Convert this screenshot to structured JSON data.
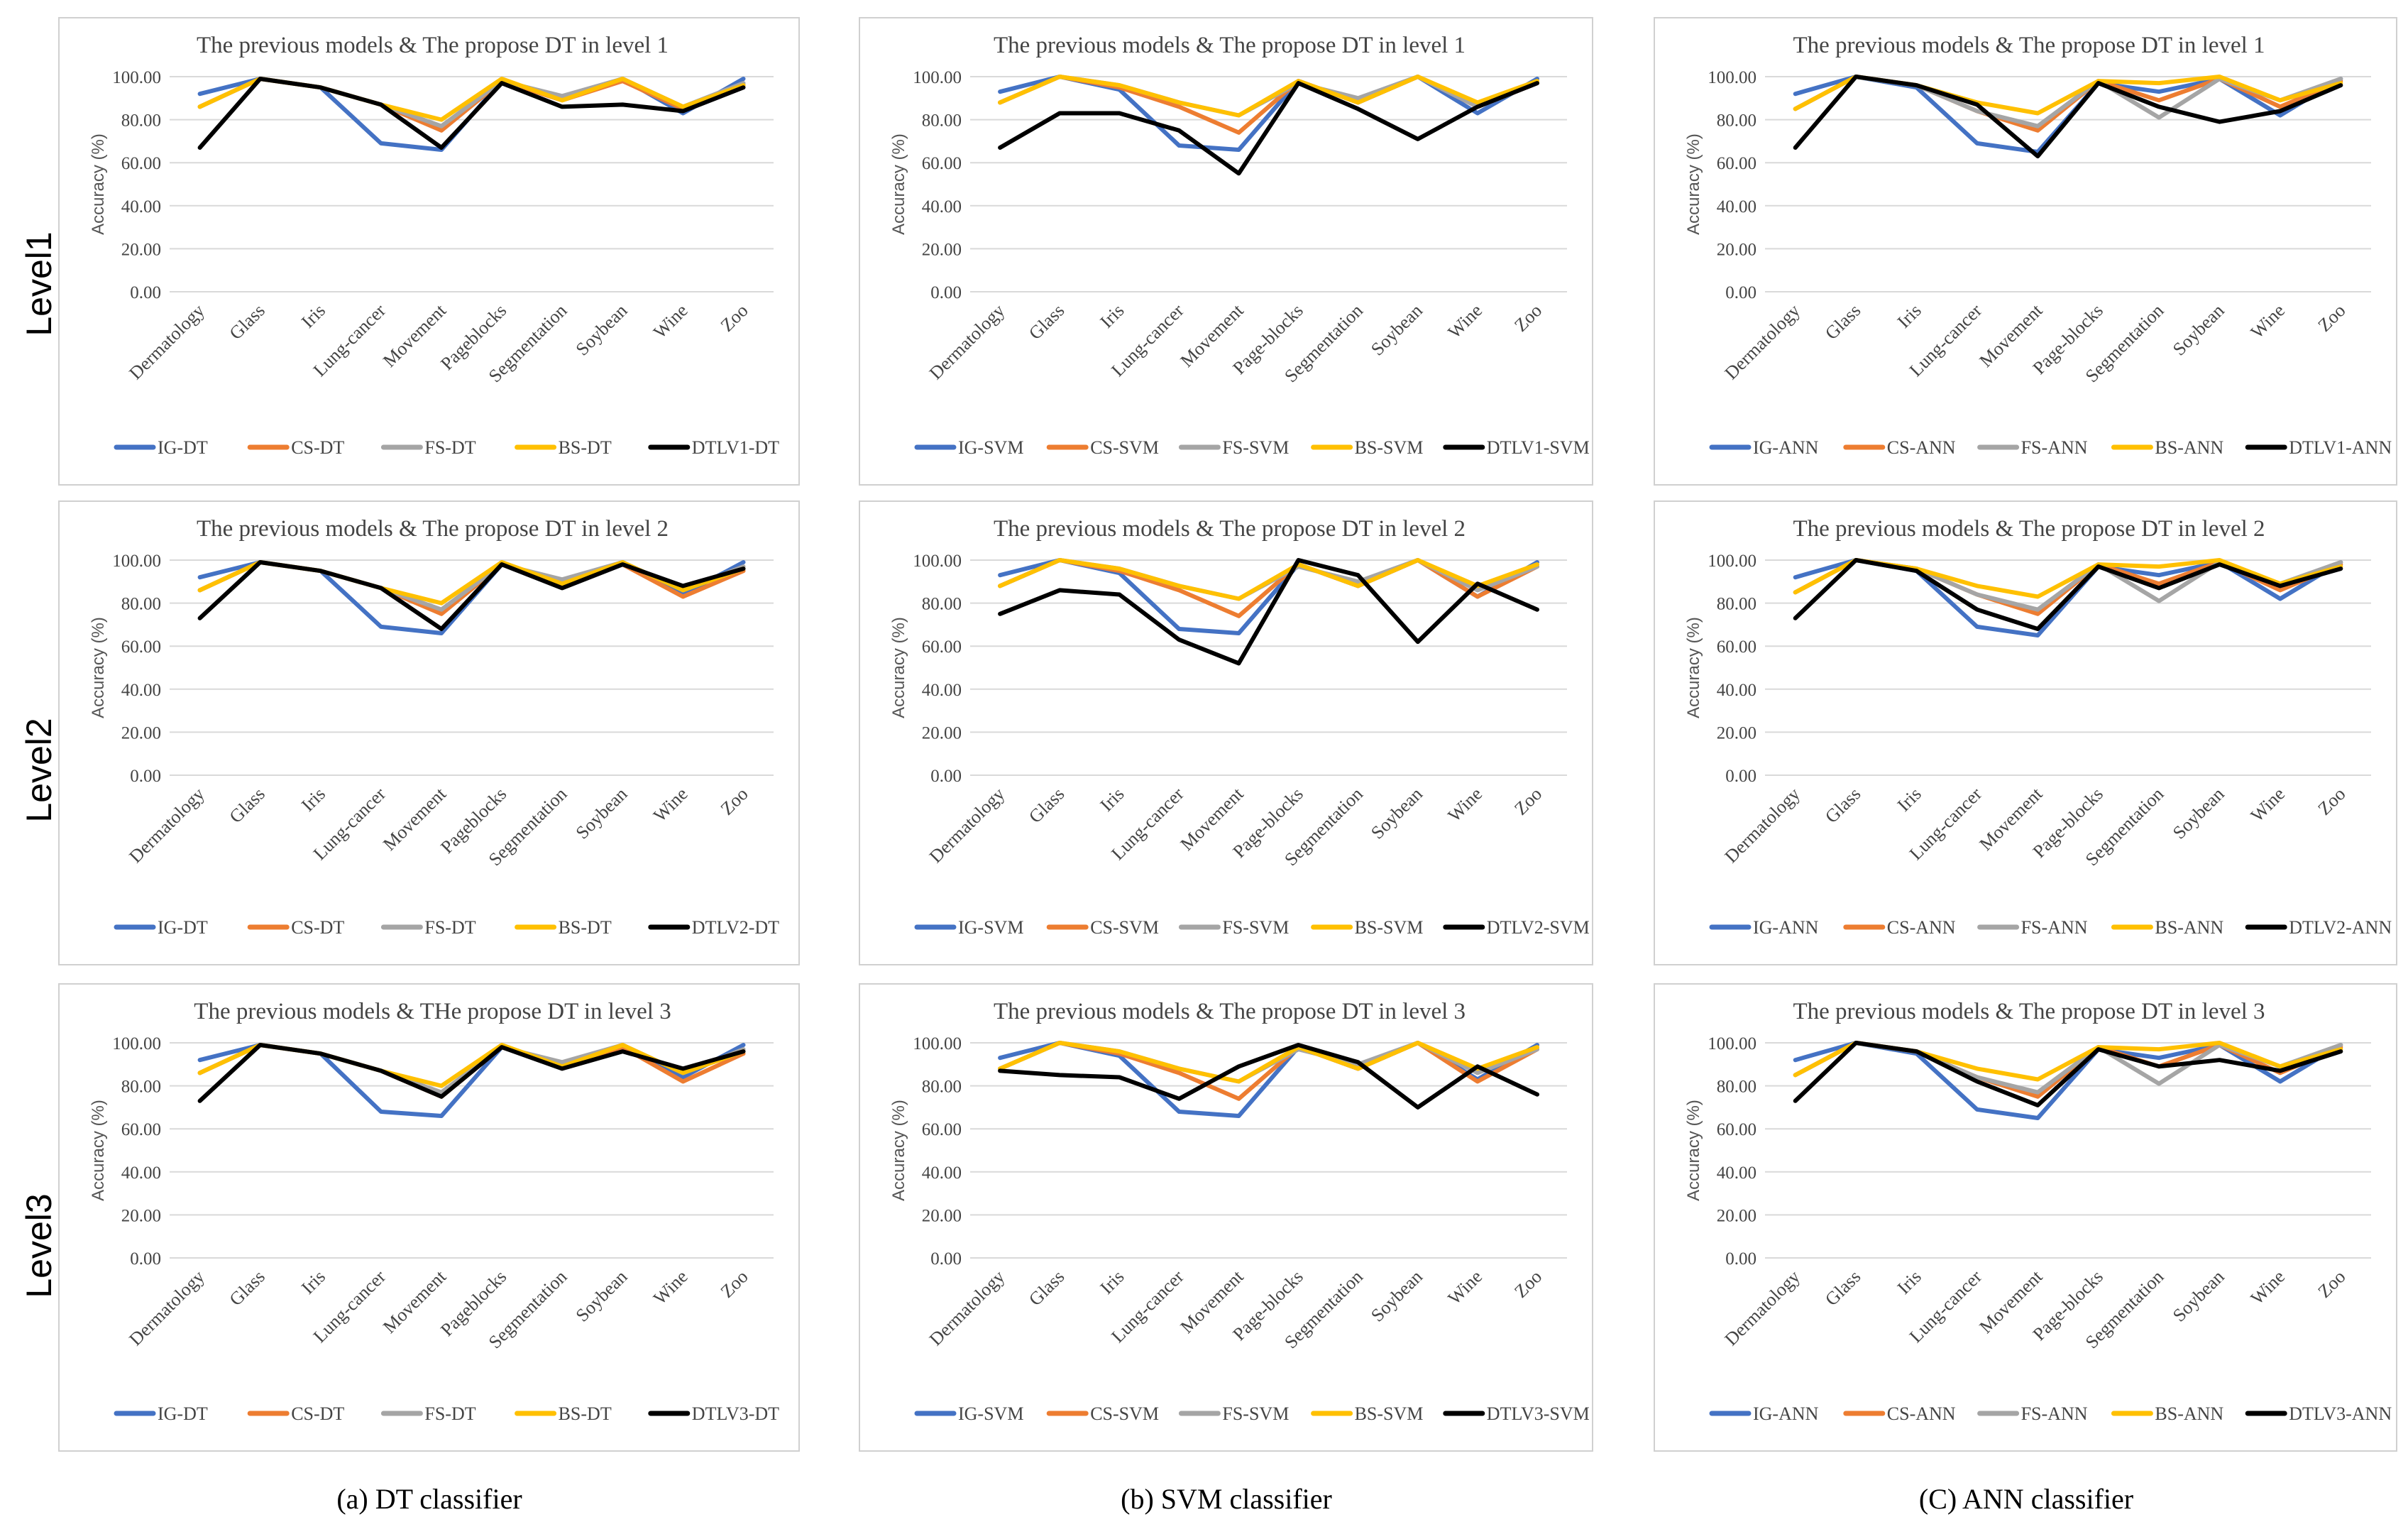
{
  "row_labels": [
    "Level1",
    "Level2",
    "Level3"
  ],
  "captions": [
    "(a) DT classifier",
    "(b) SVM classifier",
    "(C) ANN classifier"
  ],
  "colors": {
    "IG": "#4472C4",
    "CS": "#ED7D31",
    "FS": "#A5A5A5",
    "BS": "#FFC000",
    "DTLV": "#000000",
    "grid": "#d9d9d9"
  },
  "chart_data": [
    {
      "type": "line",
      "title": "The previous models & The propose DT in level 1",
      "ylabel": "Accuracy (%)",
      "ylim": [
        0,
        100
      ],
      "yticks": [
        "0.00",
        "20.00",
        "40.00",
        "60.00",
        "80.00",
        "100.00"
      ],
      "categories": [
        "Dermatology",
        "Glass",
        "Iris",
        "Lung-cancer",
        "Movement",
        "Pageblocks",
        "Segmentation",
        "Soybean",
        "Wine",
        "Zoo"
      ],
      "series": [
        {
          "name": "IG-DT",
          "values": [
            92,
            99,
            95,
            69,
            66,
            98,
            90,
            99,
            83,
            99
          ]
        },
        {
          "name": "CS-DT",
          "values": [
            86,
            99,
            95,
            87,
            75,
            98,
            89,
            98,
            85,
            96
          ]
        },
        {
          "name": "FS-DT",
          "values": [
            86,
            99,
            95,
            87,
            77,
            98,
            91,
            99,
            86,
            97
          ]
        },
        {
          "name": "BS-DT",
          "values": [
            86,
            99,
            95,
            87,
            80,
            99,
            89,
            99,
            86,
            96
          ]
        },
        {
          "name": "DTLV1-DT",
          "values": [
            67,
            99,
            95,
            87,
            67,
            97,
            86,
            87,
            84,
            95
          ]
        }
      ]
    },
    {
      "type": "line",
      "title": "The previous models & The propose DT in level 1",
      "ylabel": "Accuracy (%)",
      "ylim": [
        0,
        100
      ],
      "yticks": [
        "0.00",
        "20.00",
        "40.00",
        "60.00",
        "80.00",
        "100.00"
      ],
      "categories": [
        "Dermatology",
        "Glass",
        "Iris",
        "Lung-cancer",
        "Movement",
        "Page-blocks",
        "Segmentation",
        "Soybean",
        "Wine",
        "Zoo"
      ],
      "series": [
        {
          "name": "IG-SVM",
          "values": [
            93,
            100,
            94,
            68,
            66,
            98,
            88,
            100,
            83,
            99
          ]
        },
        {
          "name": "CS-SVM",
          "values": [
            88,
            100,
            95,
            86,
            74,
            98,
            88,
            100,
            86,
            97
          ]
        },
        {
          "name": "FS-SVM",
          "values": [
            88,
            100,
            96,
            88,
            82,
            97,
            90,
            100,
            86,
            97
          ]
        },
        {
          "name": "BS-SVM",
          "values": [
            88,
            100,
            96,
            88,
            82,
            98,
            88,
            100,
            88,
            98
          ]
        },
        {
          "name": "DTLV1-SVM",
          "values": [
            67,
            83,
            83,
            75,
            55,
            97,
            85,
            71,
            86,
            97
          ]
        }
      ]
    },
    {
      "type": "line",
      "title": "The previous models & The propose DT in level 1",
      "ylabel": "Accuracy (%)",
      "ylim": [
        0,
        100
      ],
      "yticks": [
        "0.00",
        "20.00",
        "40.00",
        "60.00",
        "80.00",
        "100.00"
      ],
      "categories": [
        "Dermatology",
        "Glass",
        "Iris",
        "Lung-cancer",
        "Movement",
        "Page-blocks",
        "Segmentation",
        "Soybean",
        "Wine",
        "Zoo"
      ],
      "series": [
        {
          "name": "IG-ANN",
          "values": [
            92,
            100,
            95,
            69,
            65,
            97,
            93,
            99,
            82,
            99
          ]
        },
        {
          "name": "CS-ANN",
          "values": [
            85,
            100,
            96,
            84,
            75,
            98,
            89,
            99,
            86,
            98
          ]
        },
        {
          "name": "FS-ANN",
          "values": [
            85,
            100,
            96,
            84,
            77,
            98,
            81,
            99,
            89,
            99
          ]
        },
        {
          "name": "BS-ANN",
          "values": [
            85,
            100,
            96,
            88,
            83,
            98,
            97,
            100,
            89,
            97
          ]
        },
        {
          "name": "DTLV1-ANN",
          "values": [
            67,
            100,
            96,
            87,
            63,
            97,
            86,
            79,
            84,
            96
          ]
        }
      ]
    },
    {
      "type": "line",
      "title": "The previous models & The propose DT in level 2",
      "ylabel": "Accuracy (%)",
      "ylim": [
        0,
        100
      ],
      "yticks": [
        "0.00",
        "20.00",
        "40.00",
        "60.00",
        "80.00",
        "100.00"
      ],
      "categories": [
        "Dermatology",
        "Glass",
        "Iris",
        "Lung-cancer",
        "Movement",
        "Pageblocks",
        "Segmentation",
        "Soybean",
        "Wine",
        "Zoo"
      ],
      "series": [
        {
          "name": "IG-DT",
          "values": [
            92,
            99,
            95,
            69,
            66,
            98,
            90,
            99,
            84,
            99
          ]
        },
        {
          "name": "CS-DT",
          "values": [
            86,
            99,
            95,
            87,
            75,
            98,
            89,
            98,
            83,
            95
          ]
        },
        {
          "name": "FS-DT",
          "values": [
            86,
            99,
            95,
            87,
            77,
            98,
            91,
            99,
            86,
            97
          ]
        },
        {
          "name": "BS-DT",
          "values": [
            86,
            99,
            95,
            87,
            80,
            99,
            89,
            99,
            86,
            96
          ]
        },
        {
          "name": "DTLV2-DT",
          "values": [
            73,
            99,
            95,
            87,
            68,
            98,
            87,
            98,
            88,
            96
          ]
        }
      ]
    },
    {
      "type": "line",
      "title": "The previous models & The propose DT in level 2",
      "ylabel": "Accuracy (%)",
      "ylim": [
        0,
        100
      ],
      "yticks": [
        "0.00",
        "20.00",
        "40.00",
        "60.00",
        "80.00",
        "100.00"
      ],
      "categories": [
        "Dermatology",
        "Glass",
        "Iris",
        "Lung-cancer",
        "Movement",
        "Page-blocks",
        "Segmentation",
        "Soybean",
        "Wine",
        "Zoo"
      ],
      "series": [
        {
          "name": "IG-SVM",
          "values": [
            93,
            100,
            94,
            68,
            66,
            98,
            88,
            100,
            83,
            99
          ]
        },
        {
          "name": "CS-SVM",
          "values": [
            88,
            100,
            95,
            86,
            74,
            98,
            88,
            100,
            83,
            97
          ]
        },
        {
          "name": "FS-SVM",
          "values": [
            88,
            100,
            96,
            88,
            82,
            97,
            90,
            100,
            86,
            97
          ]
        },
        {
          "name": "BS-SVM",
          "values": [
            88,
            100,
            96,
            88,
            82,
            98,
            88,
            100,
            88,
            98
          ]
        },
        {
          "name": "DTLV2-SVM",
          "values": [
            75,
            86,
            84,
            63,
            52,
            100,
            93,
            62,
            89,
            77
          ]
        }
      ]
    },
    {
      "type": "line",
      "title": "The previous models & The propose DT in level 2",
      "ylabel": "Accuracy (%)",
      "ylim": [
        0,
        100
      ],
      "yticks": [
        "0.00",
        "20.00",
        "40.00",
        "60.00",
        "80.00",
        "100.00"
      ],
      "categories": [
        "Dermatology",
        "Glass",
        "Iris",
        "Lung-cancer",
        "Movement",
        "Page-blocks",
        "Segmentation",
        "Soybean",
        "Wine",
        "Zoo"
      ],
      "series": [
        {
          "name": "IG-ANN",
          "values": [
            92,
            100,
            95,
            69,
            65,
            97,
            93,
            99,
            82,
            99
          ]
        },
        {
          "name": "CS-ANN",
          "values": [
            85,
            100,
            96,
            84,
            75,
            98,
            89,
            99,
            86,
            98
          ]
        },
        {
          "name": "FS-ANN",
          "values": [
            85,
            100,
            96,
            84,
            77,
            98,
            81,
            99,
            89,
            99
          ]
        },
        {
          "name": "BS-ANN",
          "values": [
            85,
            100,
            96,
            88,
            83,
            98,
            97,
            100,
            89,
            97
          ]
        },
        {
          "name": "DTLV2-ANN",
          "values": [
            73,
            100,
            95,
            77,
            68,
            97,
            87,
            98,
            88,
            96
          ]
        }
      ]
    },
    {
      "type": "line",
      "title": "The previous models & THe propose DT in level 3",
      "ylabel": "Accuracy (%)",
      "ylim": [
        0,
        100
      ],
      "yticks": [
        "0.00",
        "20.00",
        "40.00",
        "60.00",
        "80.00",
        "100.00"
      ],
      "categories": [
        "Dermatology",
        "Glass",
        "Iris",
        "Lung-cancer",
        "Movement",
        "Pageblocks",
        "Segmentation",
        "Soybean",
        "Wine",
        "Zoo"
      ],
      "series": [
        {
          "name": "IG-DT",
          "values": [
            92,
            99,
            95,
            68,
            66,
            98,
            90,
            99,
            84,
            99
          ]
        },
        {
          "name": "CS-DT",
          "values": [
            86,
            99,
            95,
            87,
            75,
            98,
            89,
            98,
            82,
            95
          ]
        },
        {
          "name": "FS-DT",
          "values": [
            86,
            99,
            95,
            87,
            77,
            98,
            91,
            99,
            86,
            97
          ]
        },
        {
          "name": "BS-DT",
          "values": [
            86,
            99,
            95,
            87,
            80,
            99,
            89,
            99,
            86,
            96
          ]
        },
        {
          "name": "DTLV3-DT",
          "values": [
            73,
            99,
            95,
            87,
            75,
            98,
            88,
            96,
            88,
            96
          ]
        }
      ]
    },
    {
      "type": "line",
      "title": "The previous models & The propose DT in level 3",
      "ylabel": "Accuracy (%)",
      "ylim": [
        0,
        100
      ],
      "yticks": [
        "0.00",
        "20.00",
        "40.00",
        "60.00",
        "80.00",
        "100.00"
      ],
      "categories": [
        "Dermatology",
        "Glass",
        "Iris",
        "Lung-cancer",
        "Movement",
        "Page-blocks",
        "Segmentation",
        "Soybean",
        "Wine",
        "Zoo"
      ],
      "series": [
        {
          "name": "IG-SVM",
          "values": [
            93,
            100,
            94,
            68,
            66,
            98,
            88,
            100,
            83,
            99
          ]
        },
        {
          "name": "CS-SVM",
          "values": [
            88,
            100,
            95,
            86,
            74,
            98,
            88,
            100,
            82,
            97
          ]
        },
        {
          "name": "FS-SVM",
          "values": [
            88,
            100,
            96,
            88,
            82,
            97,
            90,
            100,
            86,
            97
          ]
        },
        {
          "name": "BS-SVM",
          "values": [
            88,
            100,
            96,
            88,
            82,
            98,
            88,
            100,
            88,
            98
          ]
        },
        {
          "name": "DTLV3-SVM",
          "values": [
            87,
            85,
            84,
            74,
            89,
            99,
            91,
            70,
            89,
            76
          ]
        }
      ]
    },
    {
      "type": "line",
      "title": "The previous models & The propose DT in level 3",
      "ylabel": "Accuracy (%)",
      "ylim": [
        0,
        100
      ],
      "yticks": [
        "0.00",
        "20.00",
        "40.00",
        "60.00",
        "80.00",
        "100.00"
      ],
      "categories": [
        "Dermatology",
        "Glass",
        "Iris",
        "Lung-cancer",
        "Movement",
        "Page-blocks",
        "Segmentation",
        "Soybean",
        "Wine",
        "Zoo"
      ],
      "series": [
        {
          "name": "IG-ANN",
          "values": [
            92,
            100,
            95,
            69,
            65,
            97,
            93,
            99,
            82,
            99
          ]
        },
        {
          "name": "CS-ANN",
          "values": [
            85,
            100,
            96,
            84,
            75,
            98,
            89,
            99,
            86,
            98
          ]
        },
        {
          "name": "FS-ANN",
          "values": [
            85,
            100,
            96,
            84,
            77,
            98,
            81,
            99,
            89,
            99
          ]
        },
        {
          "name": "BS-ANN",
          "values": [
            85,
            100,
            96,
            88,
            83,
            98,
            97,
            100,
            89,
            97
          ]
        },
        {
          "name": "DTLV3-ANN",
          "values": [
            73,
            100,
            96,
            82,
            71,
            97,
            89,
            92,
            87,
            96
          ]
        }
      ]
    }
  ]
}
